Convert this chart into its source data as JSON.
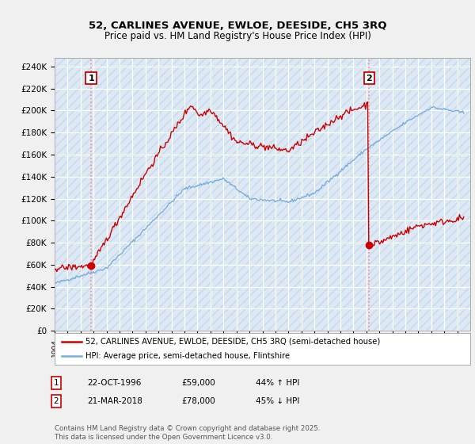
{
  "title1": "52, CARLINES AVENUE, EWLOE, DEESIDE, CH5 3RQ",
  "title2": "Price paid vs. HM Land Registry's House Price Index (HPI)",
  "yticks": [
    0,
    20000,
    40000,
    60000,
    80000,
    100000,
    120000,
    140000,
    160000,
    180000,
    200000,
    220000,
    240000
  ],
  "ytick_labels": [
    "£0",
    "£20K",
    "£40K",
    "£60K",
    "£80K",
    "£100K",
    "£120K",
    "£140K",
    "£160K",
    "£180K",
    "£200K",
    "£220K",
    "£240K"
  ],
  "xmin": 1994.0,
  "xmax": 2026.0,
  "ymin": 0,
  "ymax": 248000,
  "sale1_x": 1996.81,
  "sale1_y": 59000,
  "sale2_x": 2018.22,
  "sale2_y": 78000,
  "line_color_red": "#cc0000",
  "line_color_blue": "#7aaddb",
  "vline_color": "#ff8888",
  "legend_label_red": "52, CARLINES AVENUE, EWLOE, DEESIDE, CH5 3RQ (semi-detached house)",
  "legend_label_blue": "HPI: Average price, semi-detached house, Flintshire",
  "footer": "Contains HM Land Registry data © Crown copyright and database right 2025.\nThis data is licensed under the Open Government Licence v3.0.",
  "background_color": "#f0f0f0",
  "plot_background": "#dce9f5",
  "hatch_color": "#c8d8e8"
}
